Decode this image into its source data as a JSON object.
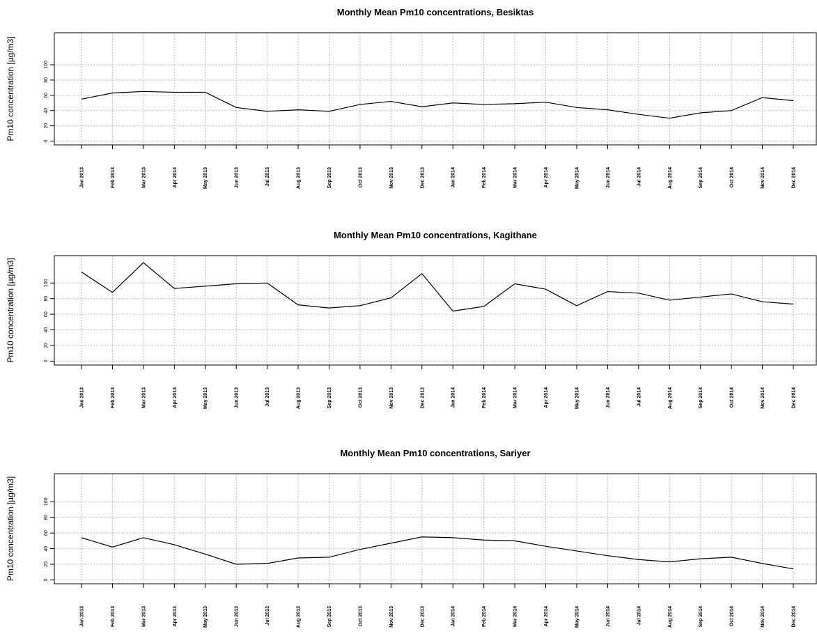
{
  "chart_data": [
    {
      "type": "line",
      "title": "Monthly Mean Pm10 concentrations, Besiktas",
      "y_label": "Pm10 concentration [µg/m3]",
      "categories": [
        "Jan 2013",
        "Feb 2013",
        "Mar 2013",
        "Apr 2013",
        "May 2013",
        "Jun 2013",
        "Jul 2013",
        "Aug 2013",
        "Sep 2013",
        "Oct 2013",
        "Nov 2013",
        "Dec 2013",
        "Jan 2014",
        "Feb 2014",
        "Mar 2014",
        "Apr 2014",
        "May 2014",
        "Jun 2014",
        "Jul 2014",
        "Aug 2014",
        "Sep 2014",
        "Oct 2014",
        "Nov 2014",
        "Dec 2014"
      ],
      "values": [
        55,
        63,
        65,
        64,
        64,
        44,
        39,
        41,
        39,
        48,
        52,
        45,
        50,
        48,
        49,
        51,
        44,
        41,
        35,
        30,
        37,
        40,
        57,
        53
      ],
      "color": "#000000",
      "ylim": [
        -5,
        142
      ],
      "yticks": [
        0,
        20,
        40,
        60,
        80,
        100
      ],
      "grid": true
    },
    {
      "type": "line",
      "title": "Monthly Mean Pm10 concentrations, Kagithane",
      "y_label": "Pm10 concentration [µg/m3]",
      "categories": [
        "Jan 2013",
        "Feb 2013",
        "Mar 2013",
        "Apr 2013",
        "May 2013",
        "Jun 2013",
        "Jul 2013",
        "Aug 2013",
        "Sep 2013",
        "Oct 2013",
        "Nov 2013",
        "Dec 2013",
        "Jan 2014",
        "Feb 2014",
        "Mar 2014",
        "Apr 2014",
        "May 2014",
        "Jun 2014",
        "Jul 2014",
        "Aug 2014",
        "Sep 2014",
        "Oct 2014",
        "Nov 2014",
        "Dec 2014"
      ],
      "values": [
        114,
        88,
        126,
        93,
        96,
        99,
        100,
        72,
        68,
        71,
        81,
        112,
        64,
        70,
        99,
        92,
        71,
        89,
        87,
        78,
        82,
        86,
        76,
        73
      ],
      "color": "#000000",
      "ylim": [
        -5,
        135
      ],
      "yticks": [
        0,
        20,
        40,
        60,
        80,
        100
      ],
      "grid": true
    },
    {
      "type": "line",
      "title": "Monthly Mean Pm10 concentrations, Sariyer",
      "y_label": "Pm10 concentration [µg/m3]",
      "categories": [
        "Jan 2013",
        "Feb 2013",
        "Mar 2013",
        "Apr 2013",
        "May 2013",
        "Jun 2013",
        "Jul 2013",
        "Aug 2013",
        "Sep 2013",
        "Oct 2013",
        "Nov 2013",
        "Dec 2013",
        "Jan 2014",
        "Feb 2014",
        "Mar 2014",
        "Apr 2014",
        "May 2014",
        "Jun 2014",
        "Jul 2014",
        "Aug 2014",
        "Sep 2014",
        "Oct 2014",
        "Nov 2014",
        "Dec 2014"
      ],
      "values": [
        54,
        42,
        54,
        45,
        33,
        20,
        21,
        28,
        29,
        39,
        47,
        55,
        54,
        51,
        50,
        43,
        37,
        31,
        26,
        23,
        27,
        29,
        21,
        14
      ],
      "color": "#000000",
      "ylim": [
        -5,
        136
      ],
      "yticks": [
        0,
        20,
        40,
        60,
        80,
        100
      ],
      "grid": true
    }
  ]
}
